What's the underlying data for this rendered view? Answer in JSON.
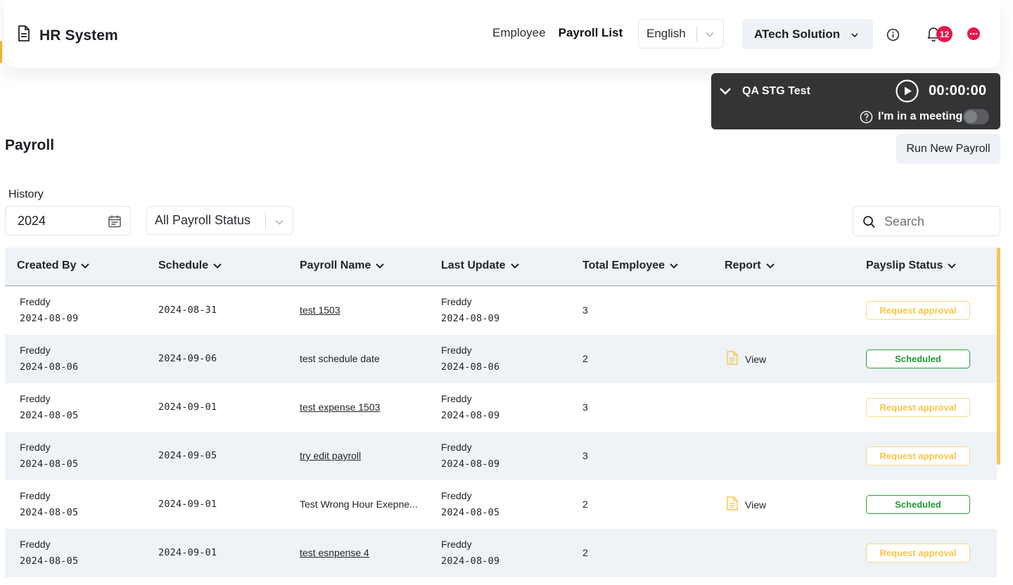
{
  "header": {
    "app_title": "HR System",
    "nav": [
      "Employee",
      "Payroll List"
    ],
    "language": "English",
    "company": "ATech Solution",
    "notification_count": "12"
  },
  "timer": {
    "project": "QA STG Test",
    "time": "00:00:00",
    "meeting_label": "I'm in a meeting",
    "meeting_on": false
  },
  "page": {
    "title": "Payroll",
    "run_button": "Run New Payroll",
    "history_label": "History",
    "year": "2024",
    "status_filter": "All Payroll Status",
    "search_placeholder": "Search"
  },
  "table": {
    "columns": [
      "Created By",
      "Schedule",
      "Payroll Name",
      "Last Update",
      "Total Employee",
      "Report",
      "Payslip Status"
    ],
    "rows": [
      {
        "created_by": "Freddy",
        "created_date": "2024-08-09",
        "schedule": "2024-08-31",
        "payroll_name": "test 1503",
        "name_link": true,
        "updated_by": "Freddy",
        "updated_date": "2024-08-09",
        "total": "3",
        "report": "",
        "status": "Request approval"
      },
      {
        "created_by": "Freddy",
        "created_date": "2024-08-06",
        "schedule": "2024-09-06",
        "payroll_name": "test schedule date",
        "name_link": false,
        "updated_by": "Freddy",
        "updated_date": "2024-08-06",
        "total": "2",
        "report": "View",
        "status": "Scheduled"
      },
      {
        "created_by": "Freddy",
        "created_date": "2024-08-05",
        "schedule": "2024-09-01",
        "payroll_name": "test expense 1503",
        "name_link": true,
        "updated_by": "Freddy",
        "updated_date": "2024-08-09",
        "total": "3",
        "report": "",
        "status": "Request approval"
      },
      {
        "created_by": "Freddy",
        "created_date": "2024-08-05",
        "schedule": "2024-09-05",
        "payroll_name": "try edit payroll",
        "name_link": true,
        "updated_by": "Freddy",
        "updated_date": "2024-08-09",
        "total": "3",
        "report": "",
        "status": "Request approval"
      },
      {
        "created_by": "Freddy",
        "created_date": "2024-08-05",
        "schedule": "2024-09-01",
        "payroll_name": "Test Wrong Hour Exepne...",
        "name_link": false,
        "updated_by": "Freddy",
        "updated_date": "2024-08-05",
        "total": "2",
        "report": "View",
        "status": "Scheduled"
      },
      {
        "created_by": "Freddy",
        "created_date": "2024-08-05",
        "schedule": "2024-09-01",
        "payroll_name": "test esnpense 4",
        "name_link": true,
        "updated_by": "Freddy",
        "updated_date": "2024-08-09",
        "total": "2",
        "report": "",
        "status": "Request approval"
      }
    ]
  },
  "colors": {
    "accent_yellow": "#f7c549",
    "scheduled_green": "#1f9a36",
    "badge_red": "#e8174b",
    "header_bg": "#eef3f8",
    "timer_bg": "#333435"
  }
}
